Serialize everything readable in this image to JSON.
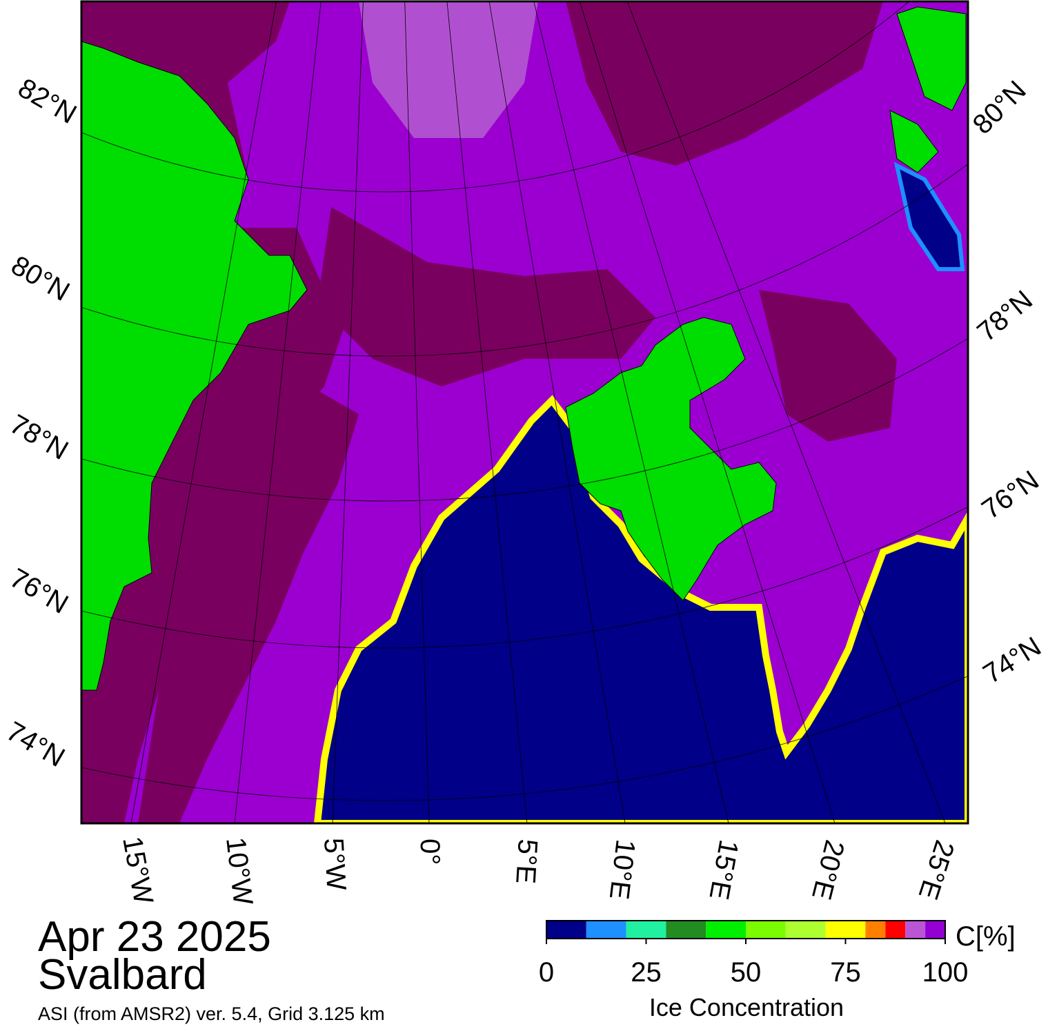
{
  "map": {
    "lat_labels_left": [
      "82°N",
      "80°N",
      "78°N",
      "76°N",
      "74°N"
    ],
    "lat_labels_right": [
      "80°N",
      "78°N",
      "76°N",
      "74°N"
    ],
    "lon_labels": [
      "15°W",
      "10°W",
      "5°W",
      "0°",
      "5°E",
      "10°E",
      "15°E",
      "20°E",
      "25°E"
    ]
  },
  "caption": {
    "date": "Apr 23 2025",
    "region": "Svalbard",
    "source": "ASI (from AMSR2) ver. 5.4,  Grid 3.125 km"
  },
  "colorbar": {
    "unit": "C[%]",
    "title": "Ice Concentration",
    "ticks": [
      0,
      25,
      50,
      75,
      100
    ],
    "bins": [
      0,
      10,
      20,
      30,
      40,
      50,
      60,
      70,
      80,
      85,
      90,
      95,
      100
    ],
    "colors": [
      "#000088",
      "#1e90ff",
      "#20f0a0",
      "#228b22",
      "#00ee00",
      "#7cfc00",
      "#adff2f",
      "#ffff00",
      "#ff8000",
      "#ff0000",
      "#ba55d3",
      "#9400d3"
    ]
  }
}
